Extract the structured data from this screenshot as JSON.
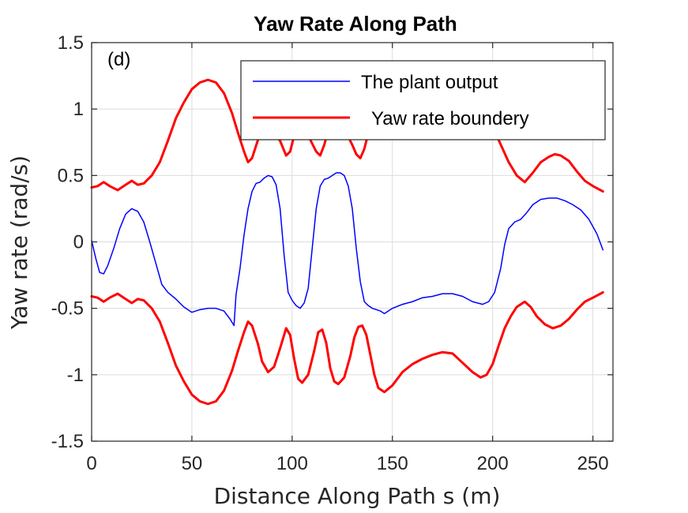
{
  "chart_data": {
    "type": "line",
    "title": "Yaw Rate Along Path",
    "panel_label": "(d)",
    "xlabel": "Distance Along Path s (m)",
    "ylabel": "Yaw rate (rad/s)",
    "xlim": [
      0,
      260
    ],
    "ylim": [
      -1.5,
      1.5
    ],
    "x_ticks": [
      0,
      50,
      100,
      150,
      200,
      250
    ],
    "x_tick_labels": [
      "0",
      "50",
      "100",
      "150",
      "200",
      "250"
    ],
    "y_ticks": [
      -1.5,
      -1,
      -0.5,
      0,
      0.5,
      1,
      1.5
    ],
    "y_tick_labels": [
      "-1.5",
      "-1",
      "-0.5",
      "0",
      "0.5",
      "1",
      "1.5"
    ],
    "grid": true,
    "legend_position": "top-right",
    "series": [
      {
        "name": "The plant output",
        "color": "#0000ff",
        "points": [
          [
            0,
            0.01
          ],
          [
            2,
            -0.12
          ],
          [
            4,
            -0.23
          ],
          [
            6,
            -0.24
          ],
          [
            8,
            -0.18
          ],
          [
            11,
            -0.05
          ],
          [
            14,
            0.1
          ],
          [
            17,
            0.21
          ],
          [
            20,
            0.25
          ],
          [
            23,
            0.23
          ],
          [
            26,
            0.15
          ],
          [
            29,
            0.0
          ],
          [
            32,
            -0.16
          ],
          [
            35,
            -0.32
          ],
          [
            38,
            -0.38
          ],
          [
            42,
            -0.43
          ],
          [
            46,
            -0.49
          ],
          [
            50,
            -0.53
          ],
          [
            54,
            -0.51
          ],
          [
            58,
            -0.5
          ],
          [
            62,
            -0.5
          ],
          [
            66,
            -0.52
          ],
          [
            69,
            -0.58
          ],
          [
            71,
            -0.63
          ],
          [
            72,
            -0.4
          ],
          [
            74,
            -0.2
          ],
          [
            76,
            0.05
          ],
          [
            78,
            0.25
          ],
          [
            80,
            0.38
          ],
          [
            82,
            0.44
          ],
          [
            84,
            0.45
          ],
          [
            86,
            0.48
          ],
          [
            88,
            0.5
          ],
          [
            90,
            0.49
          ],
          [
            92,
            0.43
          ],
          [
            94,
            0.25
          ],
          [
            96,
            -0.1
          ],
          [
            98,
            -0.38
          ],
          [
            100,
            -0.44
          ],
          [
            102,
            -0.48
          ],
          [
            104,
            -0.5
          ],
          [
            106,
            -0.46
          ],
          [
            108,
            -0.35
          ],
          [
            110,
            -0.05
          ],
          [
            112,
            0.25
          ],
          [
            114,
            0.42
          ],
          [
            116,
            0.47
          ],
          [
            118,
            0.48
          ],
          [
            120,
            0.5
          ],
          [
            122,
            0.52
          ],
          [
            124,
            0.52
          ],
          [
            126,
            0.5
          ],
          [
            128,
            0.42
          ],
          [
            130,
            0.25
          ],
          [
            132,
            -0.05
          ],
          [
            134,
            -0.3
          ],
          [
            136,
            -0.45
          ],
          [
            138,
            -0.48
          ],
          [
            140,
            -0.5
          ],
          [
            142,
            -0.51
          ],
          [
            144,
            -0.52
          ],
          [
            146,
            -0.54
          ],
          [
            150,
            -0.5
          ],
          [
            155,
            -0.47
          ],
          [
            160,
            -0.45
          ],
          [
            165,
            -0.42
          ],
          [
            170,
            -0.41
          ],
          [
            175,
            -0.39
          ],
          [
            180,
            -0.39
          ],
          [
            185,
            -0.41
          ],
          [
            190,
            -0.45
          ],
          [
            195,
            -0.47
          ],
          [
            198,
            -0.45
          ],
          [
            201,
            -0.38
          ],
          [
            204,
            -0.2
          ],
          [
            206,
            -0.02
          ],
          [
            208,
            0.1
          ],
          [
            211,
            0.15
          ],
          [
            214,
            0.17
          ],
          [
            217,
            0.22
          ],
          [
            220,
            0.28
          ],
          [
            224,
            0.32
          ],
          [
            228,
            0.33
          ],
          [
            232,
            0.33
          ],
          [
            236,
            0.31
          ],
          [
            240,
            0.28
          ],
          [
            244,
            0.24
          ],
          [
            248,
            0.17
          ],
          [
            252,
            0.06
          ],
          [
            255,
            -0.06
          ]
        ]
      },
      {
        "name": "Yaw rate boundery",
        "color": "#ff0000",
        "points": [
          [
            0,
            0.41
          ],
          [
            3,
            0.42
          ],
          [
            6,
            0.45
          ],
          [
            9,
            0.42
          ],
          [
            13,
            0.39
          ],
          [
            16,
            0.42
          ],
          [
            20,
            0.46
          ],
          [
            23,
            0.43
          ],
          [
            26,
            0.44
          ],
          [
            30,
            0.5
          ],
          [
            34,
            0.6
          ],
          [
            38,
            0.76
          ],
          [
            42,
            0.93
          ],
          [
            46,
            1.05
          ],
          [
            50,
            1.15
          ],
          [
            54,
            1.2
          ],
          [
            58,
            1.22
          ],
          [
            62,
            1.2
          ],
          [
            66,
            1.12
          ],
          [
            70,
            0.97
          ],
          [
            73,
            0.82
          ],
          [
            76,
            0.68
          ],
          [
            78,
            0.6
          ],
          [
            80,
            0.63
          ],
          [
            83,
            0.77
          ],
          [
            85,
            0.85
          ],
          [
            88,
            0.86
          ],
          [
            91,
            0.82
          ],
          [
            94,
            0.76
          ],
          [
            97,
            0.65
          ],
          [
            99,
            0.68
          ],
          [
            101,
            0.8
          ],
          [
            103,
            0.85
          ],
          [
            106,
            0.83
          ],
          [
            109,
            0.77
          ],
          [
            112,
            0.68
          ],
          [
            114,
            0.65
          ],
          [
            116,
            0.73
          ],
          [
            118,
            0.84
          ],
          [
            121,
            0.86
          ],
          [
            124,
            0.86
          ],
          [
            127,
            0.82
          ],
          [
            130,
            0.73
          ],
          [
            132,
            0.66
          ],
          [
            134,
            0.63
          ],
          [
            136,
            0.7
          ],
          [
            138,
            0.82
          ],
          [
            140,
            0.87
          ],
          [
            200,
            0.86
          ],
          [
            202,
            0.8
          ],
          [
            205,
            0.7
          ],
          [
            208,
            0.6
          ],
          [
            212,
            0.5
          ],
          [
            216,
            0.45
          ],
          [
            220,
            0.52
          ],
          [
            224,
            0.6
          ],
          [
            228,
            0.64
          ],
          [
            231,
            0.66
          ],
          [
            234,
            0.65
          ],
          [
            238,
            0.61
          ],
          [
            242,
            0.53
          ],
          [
            246,
            0.46
          ],
          [
            250,
            0.42
          ],
          [
            255,
            0.38
          ]
        ]
      },
      {
        "name": "",
        "color": "#ff0000",
        "points": [
          [
            0,
            -0.41
          ],
          [
            3,
            -0.42
          ],
          [
            6,
            -0.45
          ],
          [
            9,
            -0.42
          ],
          [
            13,
            -0.39
          ],
          [
            16,
            -0.42
          ],
          [
            20,
            -0.46
          ],
          [
            23,
            -0.43
          ],
          [
            26,
            -0.44
          ],
          [
            30,
            -0.5
          ],
          [
            34,
            -0.6
          ],
          [
            38,
            -0.76
          ],
          [
            42,
            -0.93
          ],
          [
            46,
            -1.05
          ],
          [
            50,
            -1.15
          ],
          [
            54,
            -1.2
          ],
          [
            58,
            -1.22
          ],
          [
            62,
            -1.2
          ],
          [
            66,
            -1.12
          ],
          [
            70,
            -0.97
          ],
          [
            73,
            -0.82
          ],
          [
            76,
            -0.68
          ],
          [
            78,
            -0.6
          ],
          [
            80,
            -0.63
          ],
          [
            83,
            -0.77
          ],
          [
            85,
            -0.9
          ],
          [
            88,
            -0.98
          ],
          [
            91,
            -0.94
          ],
          [
            94,
            -0.8
          ],
          [
            97,
            -0.65
          ],
          [
            99,
            -0.7
          ],
          [
            101,
            -0.88
          ],
          [
            103,
            -1.03
          ],
          [
            105,
            -1.06
          ],
          [
            108,
            -1.0
          ],
          [
            111,
            -0.82
          ],
          [
            113,
            -0.68
          ],
          [
            115,
            -0.66
          ],
          [
            117,
            -0.76
          ],
          [
            119,
            -0.95
          ],
          [
            121,
            -1.05
          ],
          [
            123,
            -1.07
          ],
          [
            126,
            -1.02
          ],
          [
            129,
            -0.86
          ],
          [
            131,
            -0.72
          ],
          [
            133,
            -0.64
          ],
          [
            135,
            -0.63
          ],
          [
            137,
            -0.7
          ],
          [
            139,
            -0.85
          ],
          [
            141,
            -1.0
          ],
          [
            143,
            -1.1
          ],
          [
            146,
            -1.13
          ],
          [
            150,
            -1.08
          ],
          [
            155,
            -0.98
          ],
          [
            160,
            -0.92
          ],
          [
            165,
            -0.88
          ],
          [
            170,
            -0.85
          ],
          [
            175,
            -0.83
          ],
          [
            180,
            -0.84
          ],
          [
            185,
            -0.91
          ],
          [
            190,
            -0.98
          ],
          [
            194,
            -1.02
          ],
          [
            197,
            -1.0
          ],
          [
            200,
            -0.92
          ],
          [
            203,
            -0.78
          ],
          [
            206,
            -0.65
          ],
          [
            209,
            -0.56
          ],
          [
            212,
            -0.49
          ],
          [
            216,
            -0.45
          ],
          [
            219,
            -0.49
          ],
          [
            222,
            -0.56
          ],
          [
            226,
            -0.62
          ],
          [
            230,
            -0.65
          ],
          [
            234,
            -0.63
          ],
          [
            238,
            -0.58
          ],
          [
            242,
            -0.51
          ],
          [
            246,
            -0.45
          ],
          [
            250,
            -0.42
          ],
          [
            255,
            -0.38
          ]
        ]
      }
    ]
  }
}
